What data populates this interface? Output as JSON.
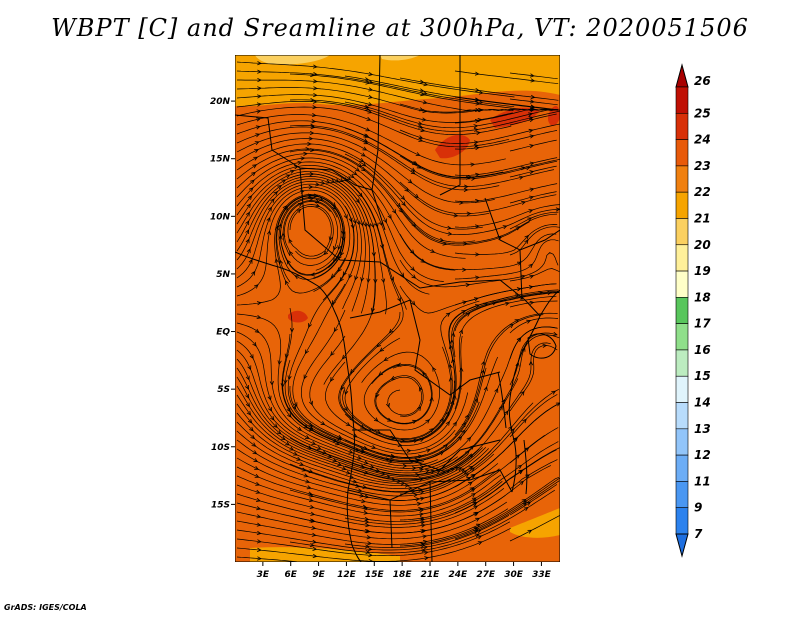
{
  "title": "WBPT [C] and Sreamline at 300hPa, VT: 2020051506",
  "credit": "GrADS: IGES/COLA",
  "map": {
    "lon_range": [
      0,
      35
    ],
    "lat_range": [
      -20,
      24
    ],
    "lon_ticks": [
      {
        "value": 3,
        "label": "3E"
      },
      {
        "value": 6,
        "label": "6E"
      },
      {
        "value": 9,
        "label": "9E"
      },
      {
        "value": 12,
        "label": "12E"
      },
      {
        "value": 15,
        "label": "15E"
      },
      {
        "value": 18,
        "label": "18E"
      },
      {
        "value": 21,
        "label": "21E"
      },
      {
        "value": 24,
        "label": "24E"
      },
      {
        "value": 27,
        "label": "27E"
      },
      {
        "value": 30,
        "label": "30E"
      },
      {
        "value": 33,
        "label": "33E"
      }
    ],
    "lat_ticks": [
      {
        "value": 20,
        "label": "20N"
      },
      {
        "value": 15,
        "label": "15N"
      },
      {
        "value": 10,
        "label": "10N"
      },
      {
        "value": 5,
        "label": "5N"
      },
      {
        "value": 0,
        "label": "EQ"
      },
      {
        "value": -5,
        "label": "5S"
      },
      {
        "value": -10,
        "label": "10S"
      },
      {
        "value": -15,
        "label": "15S"
      }
    ]
  },
  "colorbar": {
    "levels": [
      "7",
      "9",
      "11",
      "12",
      "13",
      "14",
      "15",
      "16",
      "17",
      "18",
      "19",
      "20",
      "21",
      "22",
      "23",
      "24",
      "25",
      "26"
    ],
    "colors": [
      "#1e6fe0",
      "#2c82ee",
      "#4a97f2",
      "#6cadf6",
      "#92c5fa",
      "#b8dcfc",
      "#e0f4fc",
      "#bcecc0",
      "#8fdf8a",
      "#58c65c",
      "#ffffc8",
      "#fff09a",
      "#fbd060",
      "#f6a400",
      "#f08010",
      "#e85a0a",
      "#d83008",
      "#c01004",
      "#a80000"
    ]
  },
  "fields": {
    "background": "#e86408",
    "north_band": "#f6a400",
    "north_band_light": "#fbd060",
    "warm_spot": "#d83008",
    "streamline": "#000000"
  }
}
